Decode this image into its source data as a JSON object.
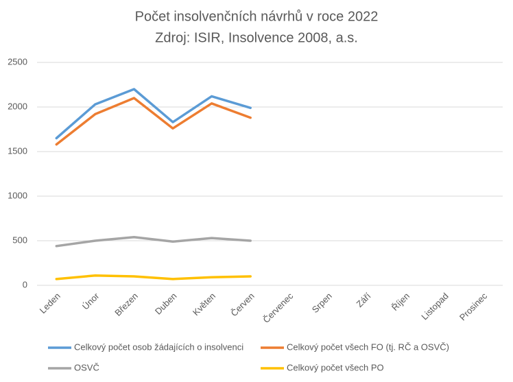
{
  "chart_data": {
    "type": "line",
    "title": "Počet insolvenčních návrhů v roce 2022",
    "subtitle": "Zdroj: ISIR, Insolvence 2008, a.s.",
    "categories": [
      "Leden",
      "Únor",
      "Březen",
      "Duben",
      "Květen",
      "Červen",
      "Červenec",
      "Srpen",
      "Září",
      "Říjen",
      "Listopad",
      "Prosinec"
    ],
    "series": [
      {
        "name": "Celkový počet osob žádajících o insolvenci",
        "color": "#5b9bd5",
        "values": [
          1650,
          2030,
          2200,
          1830,
          2120,
          1990,
          null,
          null,
          null,
          null,
          null,
          null
        ]
      },
      {
        "name": "Celkový počet všech FO (tj. RČ a OSVČ)",
        "color": "#ed7d31",
        "values": [
          1580,
          1920,
          2100,
          1760,
          2040,
          1880,
          null,
          null,
          null,
          null,
          null,
          null
        ]
      },
      {
        "name": "OSVČ",
        "color": "#a5a5a5",
        "values": [
          440,
          500,
          540,
          490,
          530,
          500,
          null,
          null,
          null,
          null,
          null,
          null
        ]
      },
      {
        "name": "Celkový počet všech PO",
        "color": "#ffc000",
        "values": [
          70,
          110,
          100,
          70,
          90,
          100,
          null,
          null,
          null,
          null,
          null,
          null
        ]
      }
    ],
    "ylim": [
      0,
      2500
    ],
    "yticks": [
      0,
      500,
      1000,
      1500,
      2000,
      2500
    ],
    "grid": true,
    "legend": "bottom"
  }
}
